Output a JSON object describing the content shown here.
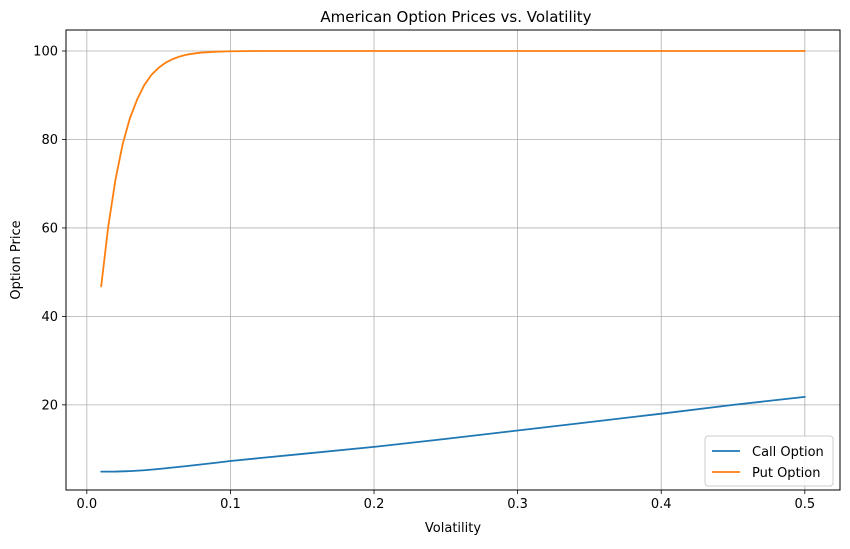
{
  "chart_data": {
    "type": "line",
    "title": "American Option Prices vs. Volatility",
    "xlabel": "Volatility",
    "ylabel": "Option Price",
    "xlim": [
      -0.0145,
      0.5245
    ],
    "ylim": [
      0.75,
      104.75
    ],
    "xticks": [
      0.0,
      0.1,
      0.2,
      0.3,
      0.4,
      0.5
    ],
    "xtick_labels": [
      "0.0",
      "0.1",
      "0.2",
      "0.3",
      "0.4",
      "0.5"
    ],
    "yticks": [
      20,
      40,
      60,
      80,
      100
    ],
    "ytick_labels": [
      "20",
      "40",
      "60",
      "80",
      "100"
    ],
    "grid": true,
    "legend_position": "lower-right",
    "series": [
      {
        "name": "Call Option",
        "color": "#1f77b4",
        "x": [
          0.01,
          0.02,
          0.03,
          0.04,
          0.05,
          0.06,
          0.07,
          0.08,
          0.09,
          0.1,
          0.12,
          0.15,
          0.2,
          0.25,
          0.3,
          0.35,
          0.4,
          0.45,
          0.5
        ],
        "y": [
          4.9,
          4.92,
          5.02,
          5.22,
          5.5,
          5.83,
          6.18,
          6.55,
          6.92,
          7.3,
          7.95,
          8.9,
          10.5,
          12.3,
          14.2,
          16.1,
          18.0,
          20.0,
          21.8
        ]
      },
      {
        "name": "Put Option",
        "color": "#ff7f0e",
        "x": [
          0.01,
          0.015,
          0.02,
          0.025,
          0.03,
          0.035,
          0.04,
          0.045,
          0.05,
          0.055,
          0.06,
          0.065,
          0.07,
          0.075,
          0.08,
          0.09,
          0.1,
          0.11,
          0.12,
          0.15,
          0.2,
          0.3,
          0.4,
          0.5
        ],
        "y": [
          46.8,
          60.5,
          71.0,
          79.0,
          84.8,
          89.0,
          92.3,
          94.6,
          96.2,
          97.4,
          98.2,
          98.8,
          99.2,
          99.45,
          99.65,
          99.85,
          99.95,
          99.98,
          100.0,
          100.0,
          100.0,
          100.0,
          100.0,
          100.0
        ]
      }
    ]
  }
}
